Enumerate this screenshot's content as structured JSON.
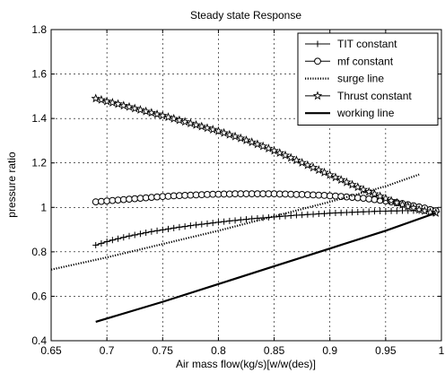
{
  "chart_data": {
    "type": "line",
    "title": "Steady state Response",
    "xlabel": "Air mass flow(kg/s)[w/w(des)]",
    "ylabel": "pressure ratio",
    "xlim": [
      0.65,
      1.0
    ],
    "ylim": [
      0.4,
      1.8
    ],
    "xticks": [
      "0.65",
      "0.7",
      "0.75",
      "0.8",
      "0.85",
      "0.9",
      "0.95",
      "1"
    ],
    "yticks": [
      "0.4",
      "0.6",
      "0.8",
      "1",
      "1.2",
      "1.4",
      "1.6",
      "1.8"
    ],
    "grid": true,
    "legend_position": "top-right",
    "series": [
      {
        "name": "TIT constant",
        "marker": "plus",
        "line": "solid",
        "x": [
          0.69,
          0.695,
          0.7,
          0.705,
          0.71,
          0.715,
          0.72,
          0.725,
          0.73,
          0.735,
          0.74,
          0.745,
          0.75,
          0.755,
          0.76,
          0.765,
          0.77,
          0.775,
          0.78,
          0.785,
          0.79,
          0.795,
          0.8,
          0.805,
          0.81,
          0.815,
          0.82,
          0.825,
          0.83,
          0.835,
          0.84,
          0.845,
          0.85,
          0.855,
          0.86,
          0.865,
          0.87,
          0.875,
          0.88,
          0.885,
          0.89,
          0.895,
          0.9,
          0.905,
          0.91,
          0.915,
          0.92,
          0.925,
          0.93,
          0.935,
          0.94,
          0.945,
          0.95,
          0.955,
          0.96,
          0.965,
          0.97,
          0.975,
          0.98,
          0.985,
          0.99,
          0.995
        ],
        "y": [
          0.83,
          0.838,
          0.846,
          0.853,
          0.859,
          0.865,
          0.871,
          0.876,
          0.881,
          0.886,
          0.891,
          0.895,
          0.899,
          0.903,
          0.907,
          0.911,
          0.914,
          0.918,
          0.921,
          0.924,
          0.927,
          0.93,
          0.933,
          0.936,
          0.939,
          0.941,
          0.944,
          0.946,
          0.949,
          0.951,
          0.953,
          0.955,
          0.957,
          0.959,
          0.961,
          0.963,
          0.965,
          0.966,
          0.968,
          0.969,
          0.971,
          0.972,
          0.974,
          0.975,
          0.976,
          0.977,
          0.978,
          0.979,
          0.98,
          0.981,
          0.982,
          0.983,
          0.983,
          0.984,
          0.984,
          0.985,
          0.985,
          0.985,
          0.985,
          0.985,
          0.985,
          0.985
        ]
      },
      {
        "name": "mf constant",
        "marker": "circle",
        "line": "solid",
        "x": [
          0.69,
          0.695,
          0.7,
          0.705,
          0.71,
          0.715,
          0.72,
          0.725,
          0.73,
          0.735,
          0.74,
          0.745,
          0.75,
          0.755,
          0.76,
          0.765,
          0.77,
          0.775,
          0.78,
          0.785,
          0.79,
          0.795,
          0.8,
          0.805,
          0.81,
          0.815,
          0.82,
          0.825,
          0.83,
          0.835,
          0.84,
          0.845,
          0.85,
          0.855,
          0.86,
          0.865,
          0.87,
          0.875,
          0.88,
          0.885,
          0.89,
          0.895,
          0.9,
          0.905,
          0.91,
          0.915,
          0.92,
          0.925,
          0.93,
          0.935,
          0.94,
          0.945,
          0.95,
          0.955,
          0.96,
          0.965,
          0.97,
          0.975,
          0.98,
          0.985,
          0.99,
          0.995
        ],
        "y": [
          1.025,
          1.027,
          1.029,
          1.031,
          1.033,
          1.035,
          1.037,
          1.039,
          1.041,
          1.043,
          1.045,
          1.047,
          1.049,
          1.05,
          1.052,
          1.053,
          1.054,
          1.055,
          1.056,
          1.057,
          1.058,
          1.059,
          1.059,
          1.06,
          1.06,
          1.061,
          1.061,
          1.061,
          1.061,
          1.061,
          1.061,
          1.061,
          1.061,
          1.06,
          1.06,
          1.059,
          1.058,
          1.058,
          1.057,
          1.056,
          1.055,
          1.054,
          1.052,
          1.051,
          1.049,
          1.047,
          1.045,
          1.043,
          1.041,
          1.038,
          1.035,
          1.032,
          1.029,
          1.025,
          1.021,
          1.017,
          1.012,
          1.007,
          1.002,
          0.997,
          0.99,
          0.985
        ]
      },
      {
        "name": "surge line",
        "marker": "none",
        "line": "dotted",
        "x": [
          0.65,
          0.7,
          0.75,
          0.8,
          0.85,
          0.9,
          0.95,
          0.98
        ],
        "y": [
          0.72,
          0.775,
          0.835,
          0.895,
          0.96,
          1.025,
          1.095,
          1.148
        ]
      },
      {
        "name": "Thrust constant",
        "marker": "star",
        "line": "solid",
        "x": [
          0.69,
          0.695,
          0.7,
          0.705,
          0.71,
          0.715,
          0.72,
          0.725,
          0.73,
          0.735,
          0.74,
          0.745,
          0.75,
          0.755,
          0.76,
          0.765,
          0.77,
          0.775,
          0.78,
          0.785,
          0.79,
          0.795,
          0.8,
          0.805,
          0.81,
          0.815,
          0.82,
          0.825,
          0.83,
          0.835,
          0.84,
          0.845,
          0.85,
          0.855,
          0.86,
          0.865,
          0.87,
          0.875,
          0.88,
          0.885,
          0.89,
          0.895,
          0.9,
          0.905,
          0.91,
          0.915,
          0.92,
          0.925,
          0.93,
          0.935,
          0.94,
          0.945,
          0.95,
          0.955,
          0.96,
          0.965,
          0.97,
          0.975,
          0.98,
          0.985,
          0.99,
          0.995
        ],
        "y": [
          1.49,
          1.484,
          1.477,
          1.471,
          1.465,
          1.458,
          1.452,
          1.445,
          1.439,
          1.432,
          1.426,
          1.419,
          1.413,
          1.406,
          1.399,
          1.392,
          1.385,
          1.378,
          1.371,
          1.364,
          1.357,
          1.35,
          1.343,
          1.335,
          1.327,
          1.319,
          1.311,
          1.302,
          1.293,
          1.284,
          1.275,
          1.265,
          1.255,
          1.245,
          1.234,
          1.223,
          1.212,
          1.201,
          1.19,
          1.179,
          1.168,
          1.157,
          1.146,
          1.135,
          1.124,
          1.113,
          1.102,
          1.091,
          1.08,
          1.07,
          1.06,
          1.05,
          1.04,
          1.03,
          1.021,
          1.012,
          1.004,
          0.997,
          0.99,
          0.984,
          0.978,
          0.975
        ]
      },
      {
        "name": "working line",
        "marker": "none",
        "line": "bold",
        "x": [
          0.69,
          0.75,
          0.8,
          0.85,
          0.9,
          0.95,
          0.995
        ],
        "y": [
          0.485,
          0.575,
          0.655,
          0.735,
          0.815,
          0.895,
          0.975
        ]
      }
    ]
  }
}
